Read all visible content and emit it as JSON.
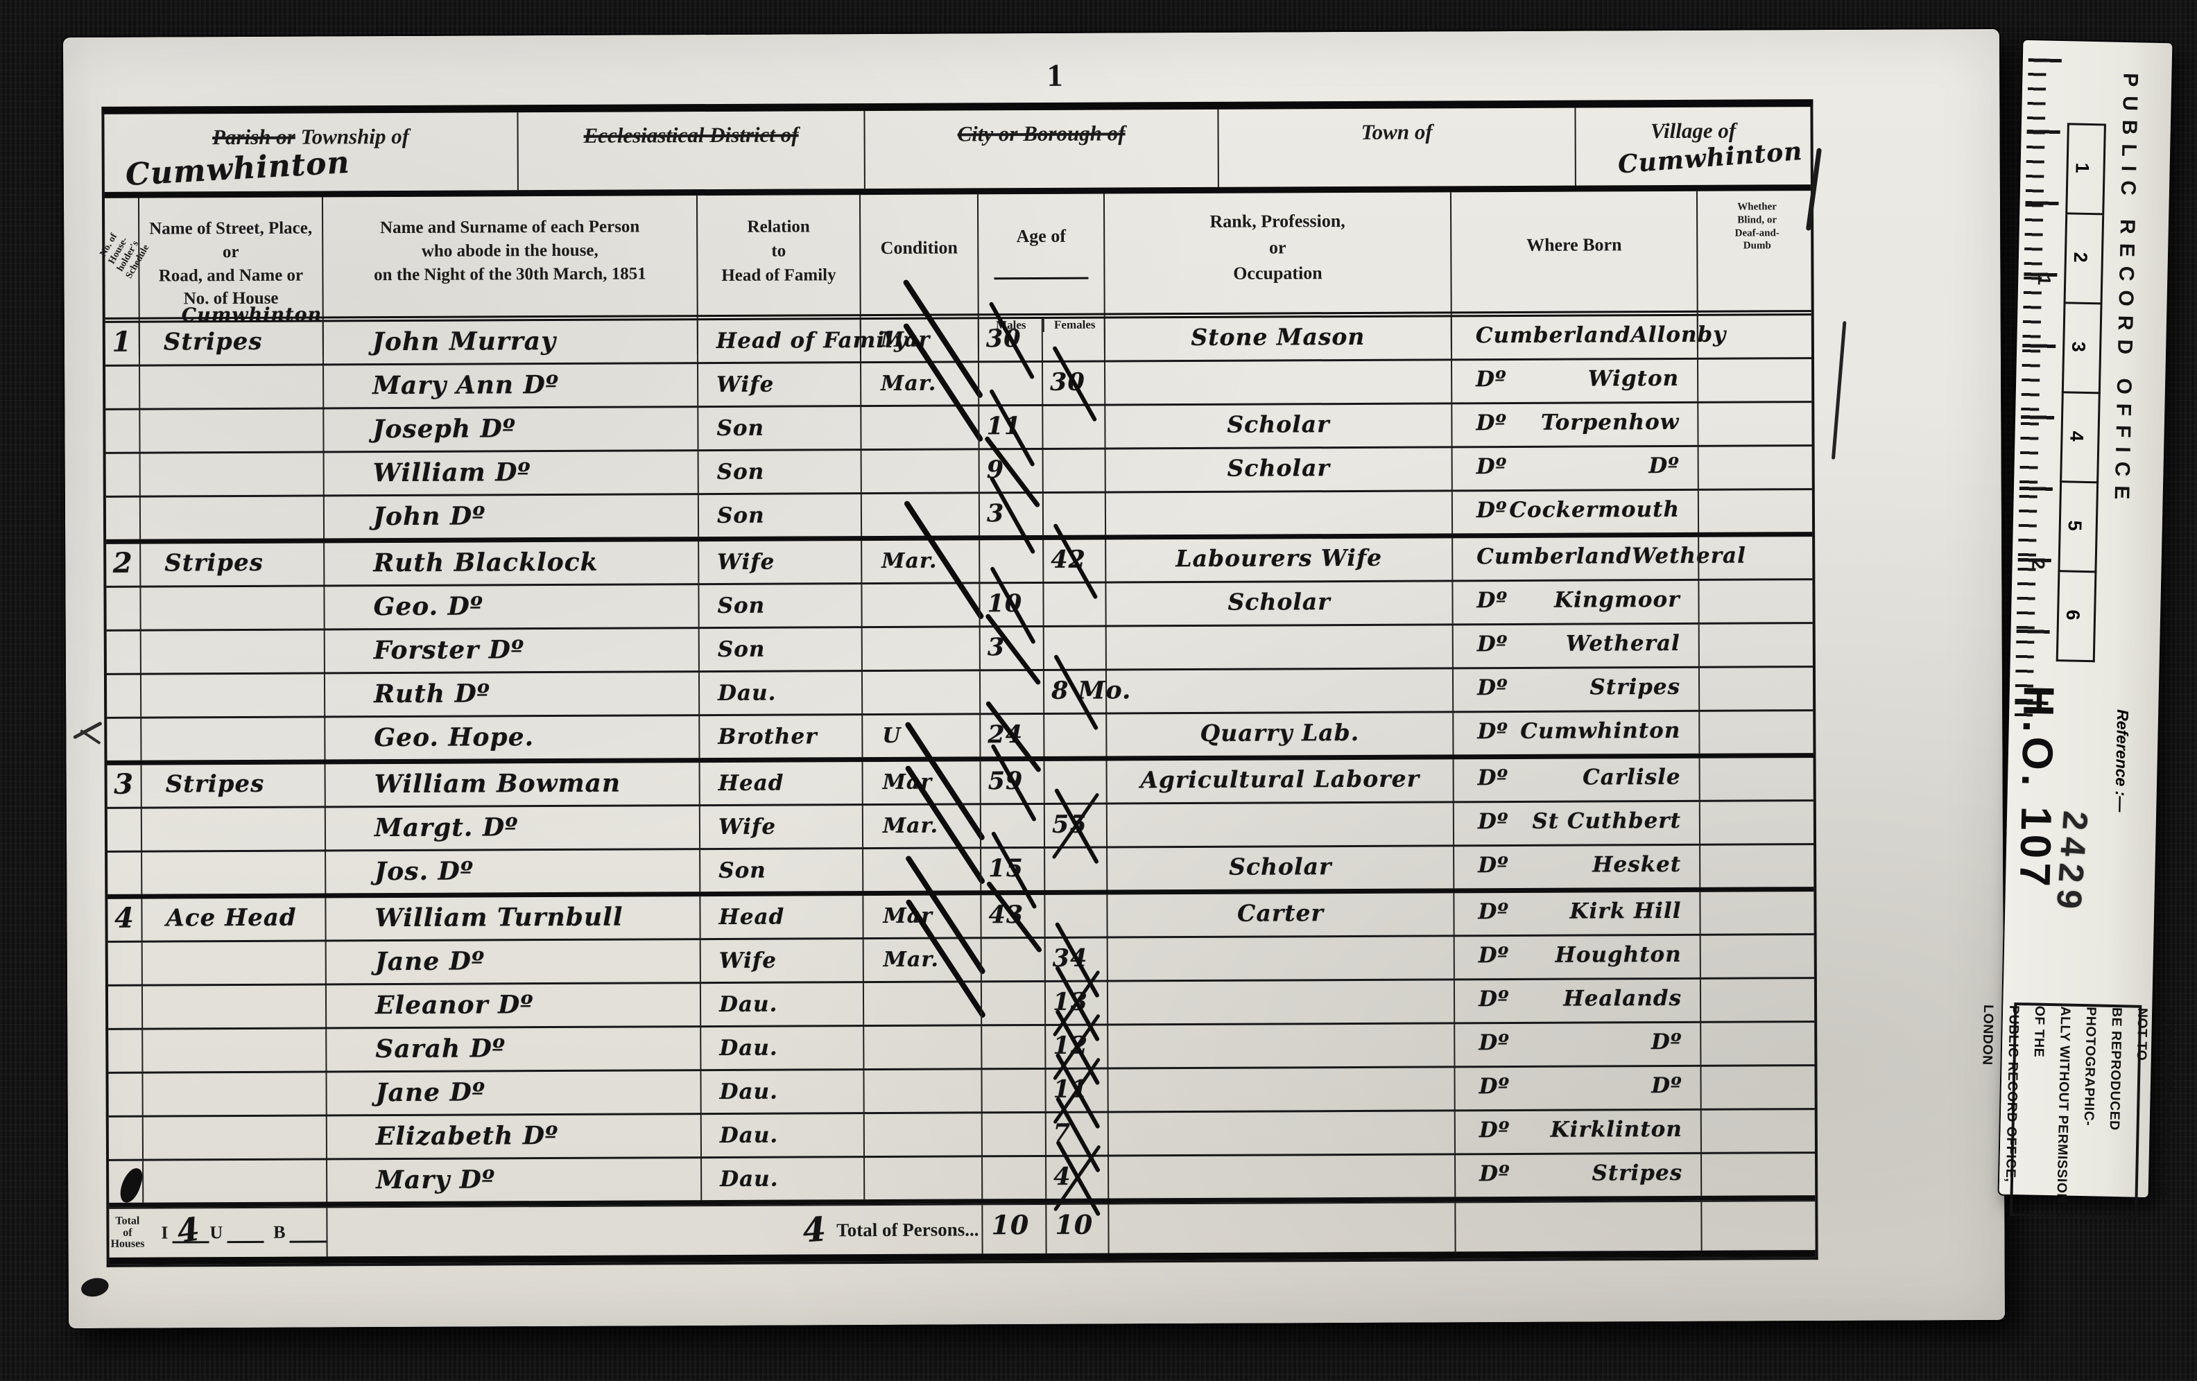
{
  "page": {
    "number": "1"
  },
  "header_band": {
    "parish_label_struck": "Parish or",
    "parish_label_rest": " Township of",
    "parish_value": "Cumwhinton",
    "ecclesiastical_label": "Ecclesiastical District of",
    "city_label": "City or Borough of",
    "town_label": "Town of",
    "village_label": "Village of",
    "village_value": "Cumwhinton"
  },
  "columns": {
    "schedule": "No. of\nHouse-\nholder's\nSchedule",
    "street": "Name of Street, Place, or\nRoad, and Name or\nNo. of House",
    "name": "Name and Surname of each Person\nwho abode in the house,\non the Night of the 30th March, 1851",
    "relation": "Relation\nto\nHead of Family",
    "condition": "Condition",
    "age": "Age of",
    "age_males": "Males",
    "age_females": "Females",
    "occupation": "Rank, Profession,\nor\nOccupation",
    "born": "Where Born",
    "infirm": "Whether\nBlind, or\nDeaf-and-\nDumb"
  },
  "table": {
    "rows": [
      {
        "s": "1",
        "st": "Stripes",
        "note": "Cumwhinton",
        "name": "John Murray",
        "rel": "Head of Family",
        "cond": "Mar",
        "cs": true,
        "m": "30",
        "f": "",
        "occ": "Stone Mason",
        "b1": "Cumberland",
        "b2": "Allonby",
        "end": false
      },
      {
        "s": "",
        "st": "",
        "note": "",
        "name": "Mary Ann Dº",
        "rel": "Wife",
        "cond": "Mar.",
        "cs": true,
        "m": "",
        "f": "30",
        "occ": "",
        "b1": "Dº",
        "b2": "Wigton",
        "end": false
      },
      {
        "s": "",
        "st": "",
        "note": "",
        "name": "Joseph Dº",
        "rel": "Son",
        "cond": "",
        "cs": false,
        "m": "11",
        "f": "",
        "occ": "Scholar",
        "b1": "Dº",
        "b2": "Torpenhow",
        "end": false
      },
      {
        "s": "",
        "st": "",
        "note": "",
        "name": "William Dº",
        "rel": "Son",
        "cond": "",
        "cs": false,
        "m": "9",
        "f": "",
        "occ": "Scholar",
        "b1": "Dº",
        "b2": "Dº",
        "end": false
      },
      {
        "s": "",
        "st": "",
        "note": "",
        "name": "John Dº",
        "rel": "Son",
        "cond": "",
        "cs": false,
        "m": "3",
        "f": "",
        "occ": "",
        "b1": "Dº",
        "b2": "Cockermouth",
        "end": true
      },
      {
        "s": "2",
        "st": "Stripes",
        "note": "",
        "name": "Ruth Blacklock",
        "rel": "Wife",
        "cond": "Mar.",
        "cs": true,
        "m": "",
        "f": "42",
        "occ": "Labourers Wife",
        "b1": "Cumberland",
        "b2": "Wetheral",
        "end": false
      },
      {
        "s": "",
        "st": "",
        "note": "",
        "name": "Geo. Dº",
        "rel": "Son",
        "cond": "",
        "cs": false,
        "m": "10",
        "f": "",
        "occ": "Scholar",
        "b1": "Dº",
        "b2": "Kingmoor",
        "end": false
      },
      {
        "s": "",
        "st": "",
        "note": "",
        "name": "Forster Dº",
        "rel": "Son",
        "cond": "",
        "cs": false,
        "m": "3",
        "f": "",
        "occ": "",
        "b1": "Dº",
        "b2": "Wetheral",
        "end": false
      },
      {
        "s": "",
        "st": "",
        "note": "",
        "name": "Ruth Dº",
        "rel": "Dau.",
        "cond": "",
        "cs": false,
        "m": "",
        "f": "8 Mo.",
        "occ": "",
        "b1": "Dº",
        "b2": "Stripes",
        "end": false
      },
      {
        "s": "",
        "st": "",
        "note": "",
        "name": "Geo. Hope.",
        "rel": "Brother",
        "cond": "U",
        "cs": false,
        "m": "24",
        "f": "",
        "occ": "Quarry Lab.",
        "b1": "Dº",
        "b2": "Cumwhinton",
        "end": true
      },
      {
        "s": "3",
        "st": "Stripes",
        "note": "",
        "name": "William Bowman",
        "rel": "Head",
        "cond": "Mar",
        "cs": true,
        "m": "59",
        "f": "",
        "occ": "Agricultural Laborer",
        "b1": "Dº",
        "b2": "Carlisle",
        "end": false
      },
      {
        "s": "",
        "st": "",
        "note": "",
        "name": "Margt. Dº",
        "rel": "Wife",
        "cond": "Mar.",
        "cs": true,
        "m": "",
        "f": "55",
        "fx": true,
        "occ": "",
        "b1": "Dº",
        "b2": "St Cuthbert",
        "end": false
      },
      {
        "s": "",
        "st": "",
        "note": "",
        "name": "Jos. Dº",
        "rel": "Son",
        "cond": "",
        "cs": false,
        "m": "15",
        "f": "",
        "occ": "Scholar",
        "b1": "Dº",
        "b2": "Hesket",
        "end": true
      },
      {
        "s": "4",
        "st": "Ace Head",
        "note": "",
        "name": "William Turnbull",
        "rel": "Head",
        "cond": "Mar",
        "cs": true,
        "m": "43",
        "f": "",
        "occ": "Carter",
        "b1": "Dº",
        "b2": "Kirk Hill",
        "end": false
      },
      {
        "s": "",
        "st": "",
        "note": "",
        "name": "Jane Dº",
        "rel": "Wife",
        "cond": "Mar.",
        "cs": true,
        "m": "",
        "f": "34",
        "occ": "",
        "b1": "Dº",
        "b2": "Houghton",
        "end": false
      },
      {
        "s": "",
        "st": "",
        "note": "",
        "name": "Eleanor Dº",
        "rel": "Dau.",
        "cond": "",
        "cs": false,
        "m": "",
        "f": "13",
        "fx": true,
        "occ": "",
        "b1": "Dº",
        "b2": "Healands",
        "end": false
      },
      {
        "s": "",
        "st": "",
        "note": "",
        "name": "Sarah Dº",
        "rel": "Dau.",
        "cond": "",
        "cs": false,
        "m": "",
        "f": "12",
        "fx": true,
        "occ": "",
        "b1": "Dº",
        "b2": "Dº",
        "end": false
      },
      {
        "s": "",
        "st": "",
        "note": "",
        "name": "Jane Dº",
        "rel": "Dau.",
        "cond": "",
        "cs": false,
        "m": "",
        "f": "11",
        "fx": true,
        "occ": "",
        "b1": "Dº",
        "b2": "Dº",
        "end": false
      },
      {
        "s": "",
        "st": "",
        "note": "",
        "name": "Elizabeth Dº",
        "rel": "Dau.",
        "cond": "",
        "cs": false,
        "m": "",
        "f": "7",
        "occ": "",
        "b1": "Dº",
        "b2": "Kirklinton",
        "end": false
      },
      {
        "s": "",
        "st": "",
        "note": "",
        "name": "Mary Dº",
        "rel": "Dau.",
        "cond": "",
        "cs": false,
        "m": "",
        "f": "4",
        "fx": true,
        "occ": "",
        "b1": "Dº",
        "b2": "Stripes",
        "end": true
      }
    ]
  },
  "footer": {
    "houses_label": "Total\nof\nHouses",
    "inhabited_label": "I",
    "inhabited_value": "4",
    "uninhabited_label": "U",
    "building_label": "B",
    "schedules_value": "4",
    "persons_label": "Total of Persons...",
    "males_total": "10",
    "females_total": "10"
  },
  "side_card": {
    "title": "PUBLIC RECORD OFFICE",
    "reference_label": "Reference :—",
    "reference_value": "H.O. 107",
    "piece_number": "2429",
    "copyright": "COPYRIGHT PHOTOGRAPH—NOT TO\nBE REPRODUCED PHOTOGRAPHIC-\nALLY WITHOUT PERMISSION OF THE\nPUBLIC RECORD OFFICE, LONDON",
    "inch_numbers": [
      "1",
      "2"
    ],
    "cm_numbers": [
      "1",
      "2",
      "3",
      "4",
      "5",
      "6"
    ]
  }
}
